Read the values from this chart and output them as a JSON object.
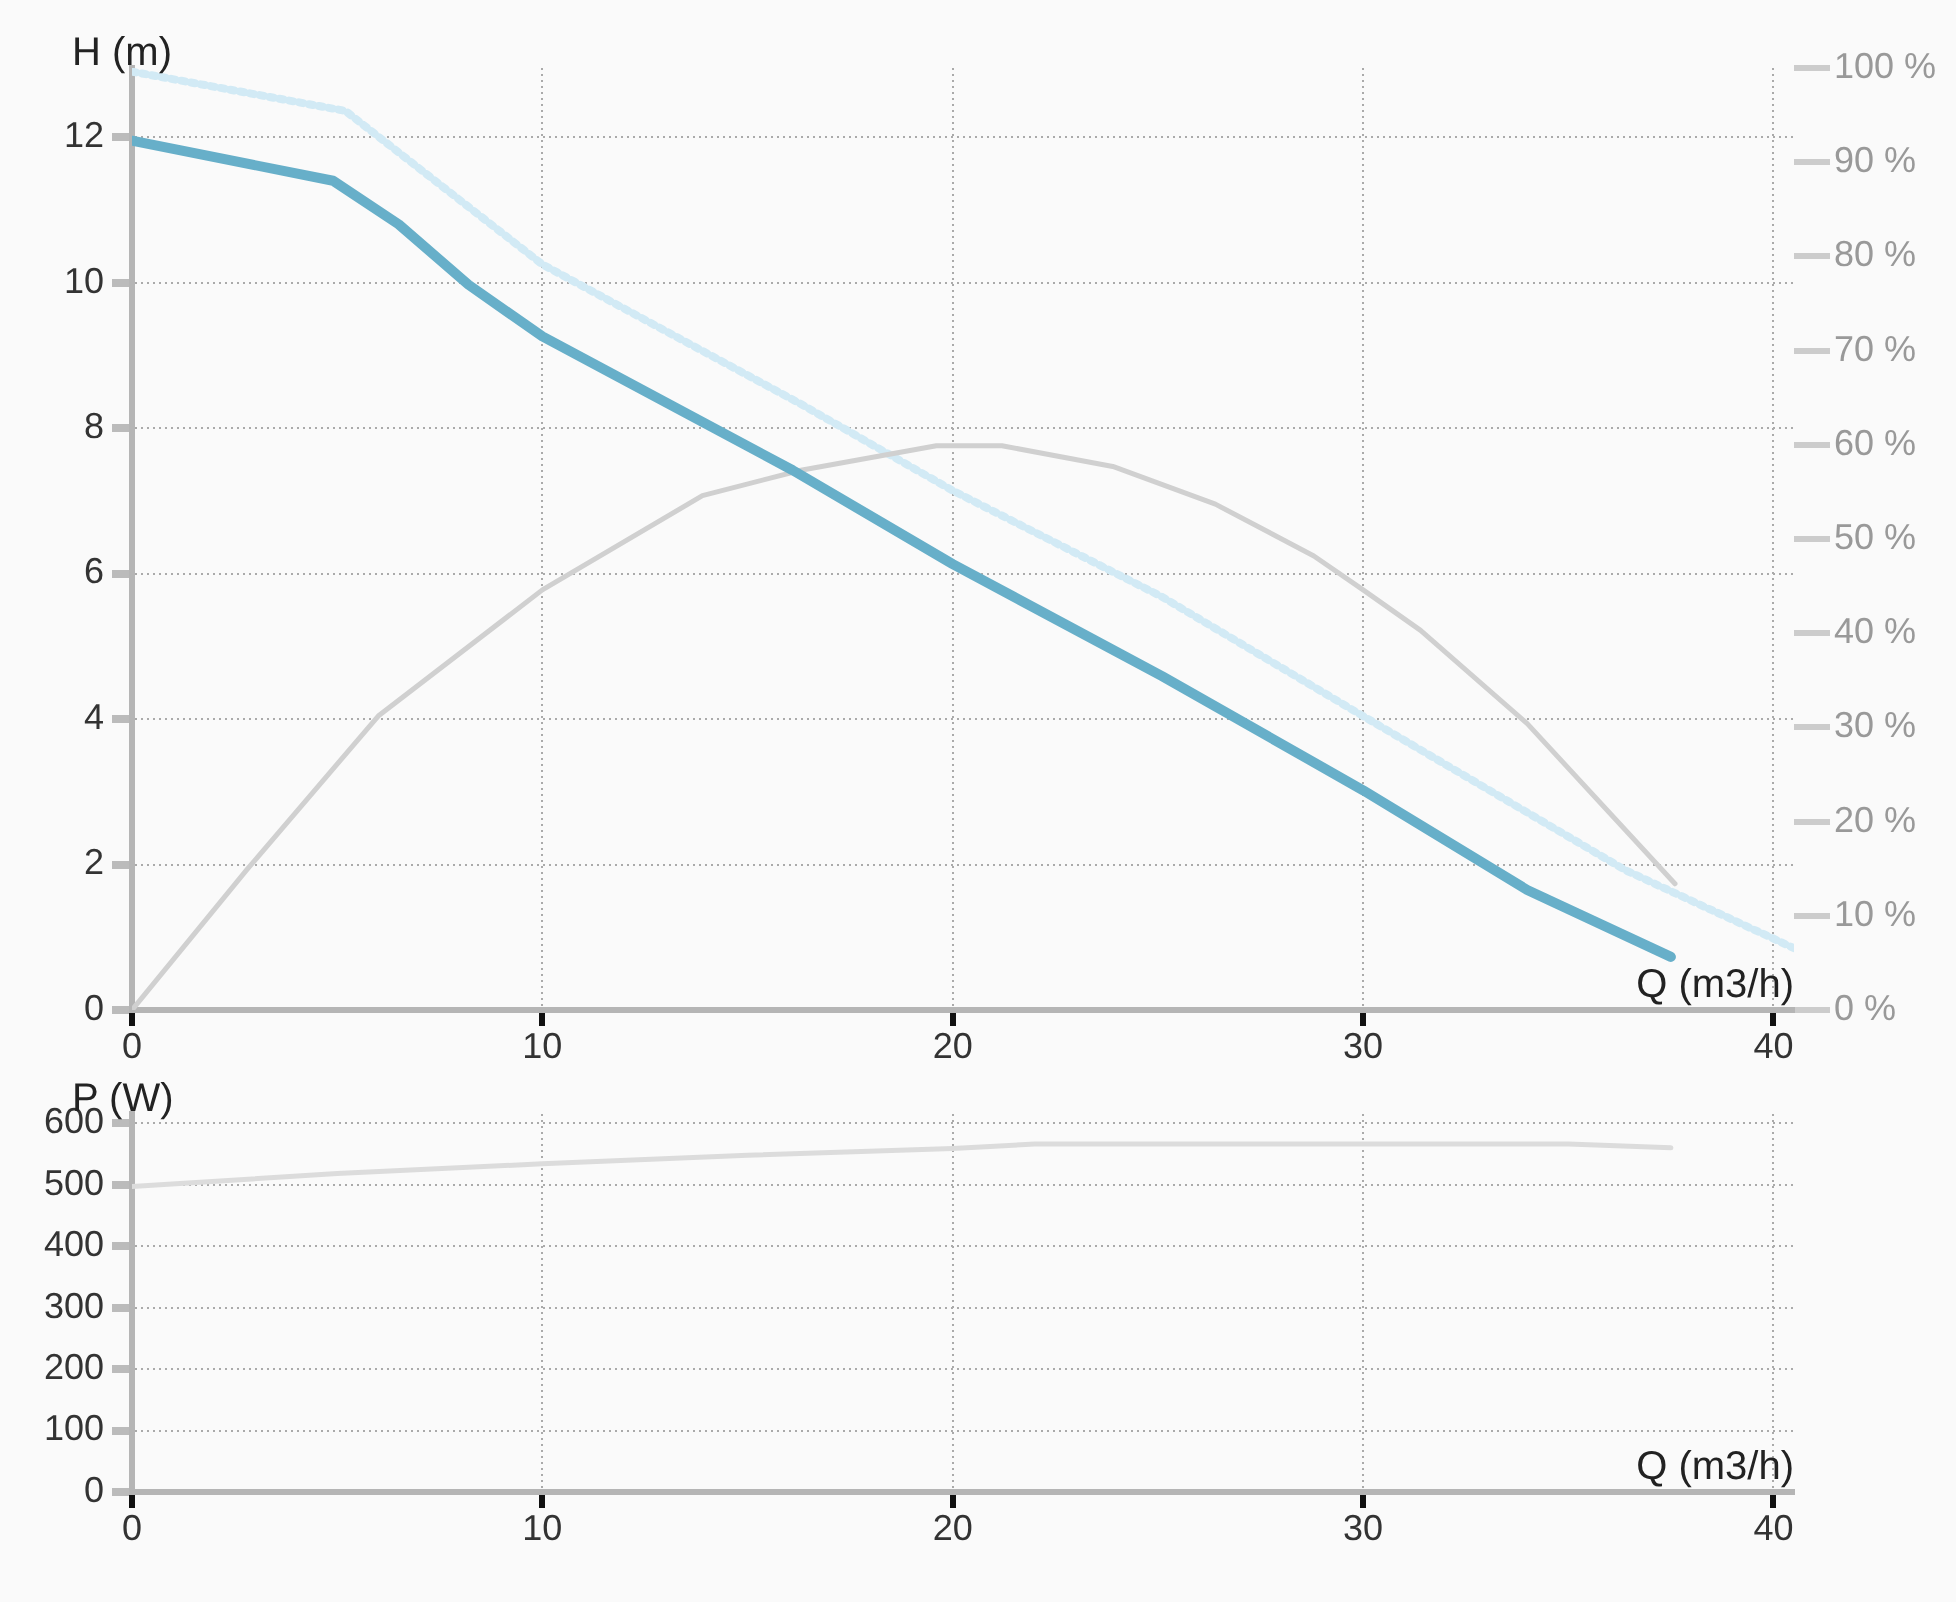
{
  "chart_data": [
    {
      "type": "line",
      "xlabel": "Q (m3/h)",
      "ylabel": "H (m)",
      "xlim": [
        0,
        40.5
      ],
      "xticks": [
        0,
        10,
        20,
        30,
        40
      ],
      "ylim": [
        0,
        12.95
      ],
      "yticks": [
        0,
        2,
        4,
        6,
        8,
        10,
        12
      ],
      "y2lim": [
        0,
        100
      ],
      "y2ticks": [
        {
          "value": 0,
          "label": "0 %"
        },
        {
          "value": 10,
          "label": "10 %"
        },
        {
          "value": 20,
          "label": "20 %"
        },
        {
          "value": 30,
          "label": "30 %"
        },
        {
          "value": 40,
          "label": "40 %"
        },
        {
          "value": 50,
          "label": "50 %"
        },
        {
          "value": 60,
          "label": "60 %"
        },
        {
          "value": 70,
          "label": "70 %"
        },
        {
          "value": 80,
          "label": "80 %"
        },
        {
          "value": 90,
          "label": "90 %"
        },
        {
          "value": 100,
          "label": "100 %"
        }
      ],
      "grid": true,
      "series": [
        {
          "color": "#d2eaf5",
          "line_style": "dotted",
          "x": [
            0,
            5.2,
            10,
            16.3,
            20,
            25.1,
            30,
            36.4,
            40.5
          ],
          "values": [
            12.9,
            12.36,
            10.25,
            8.33,
            7.14,
            5.68,
            4.04,
            1.92,
            0.85
          ]
        },
        {
          "color": "#d0d0d0",
          "axis": "y2",
          "x": [
            0,
            2.8,
            6,
            10,
            13.9,
            16.3,
            19.6,
            21.2,
            23.9,
            26.4,
            28.8,
            30,
            31.4,
            34,
            37.6
          ],
          "values": [
            0,
            14.9,
            31.2,
            44.6,
            54.6,
            57.3,
            59.9,
            59.9,
            57.7,
            53.7,
            48.2,
            44.6,
            40.3,
            30.4,
            13.4
          ]
        },
        {
          "color": "#67afc9",
          "x": [
            0,
            4.9,
            6.5,
            8.2,
            10,
            16.1,
            20,
            25.1,
            30,
            34,
            37.5
          ],
          "values": [
            11.95,
            11.4,
            10.8,
            9.97,
            9.26,
            7.42,
            6.13,
            4.59,
            3.02,
            1.65,
            0.73
          ]
        }
      ]
    },
    {
      "type": "line",
      "xlabel": "Q (m3/h)",
      "ylabel": "P (W)",
      "xlim": [
        0,
        40.5
      ],
      "xticks": [
        0,
        10,
        20,
        30,
        40
      ],
      "ylim": [
        0,
        615
      ],
      "yticks": [
        0,
        100,
        200,
        300,
        400,
        500,
        600
      ],
      "grid": true,
      "series": [
        {
          "color": "#dcdcdc",
          "x": [
            0,
            5,
            10,
            15,
            20,
            22,
            35,
            37.5
          ],
          "values": [
            497,
            518,
            534,
            548,
            559,
            566,
            566,
            560
          ]
        }
      ]
    }
  ]
}
